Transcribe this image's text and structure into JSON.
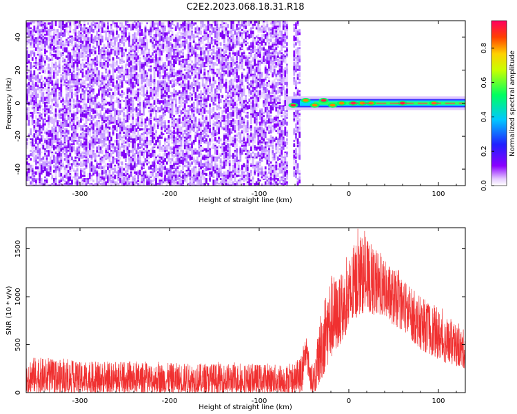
{
  "chart_data": [
    {
      "type": "heatmap",
      "title": "C2E2.2023.068.18.31.R18",
      "xlabel": "Height of straight line (km)",
      "ylabel": "Frequency (Hz)",
      "xlim": [
        -360,
        130
      ],
      "ylim": [
        -50,
        50
      ],
      "xticks": [
        "-300",
        "-200",
        "-100",
        "0",
        "100"
      ],
      "yticks": [
        "-40",
        "-20",
        "0",
        "20",
        "40"
      ],
      "grid": false,
      "colorbar": {
        "label": "Normalized spectral amplitude",
        "range": [
          0,
          0.96
        ],
        "ticks": [
          "0.0",
          "0.2",
          "0.4",
          "0.6",
          "0.8"
        ],
        "colormap": [
          "#ffffff",
          "#e0c0ff",
          "#8a00ff",
          "#2020ff",
          "#00c8ff",
          "#00ff60",
          "#c8ff00",
          "#ffd000",
          "#ff4000",
          "#ff0060"
        ]
      },
      "features": {
        "noise_region_x": [
          -360,
          -55
        ],
        "noise_gap_x": [
          -68,
          -63
        ],
        "signal_line_start_x": -70,
        "signal_line_freq": 0
      }
    },
    {
      "type": "line",
      "xlabel": "Height of straight line (km)",
      "ylabel": "SNR (10 * v/v)",
      "xlim": [
        -360,
        130
      ],
      "ylim": [
        0,
        1720
      ],
      "xticks": [
        "-300",
        "-200",
        "-100",
        "0",
        "100"
      ],
      "yticks": [
        "0",
        "500",
        "1000",
        "1500"
      ],
      "grid": false,
      "series": [
        {
          "color": "#f03030",
          "envelope": {
            "x": [
              -360,
              -300,
              -200,
              -100,
              -60,
              -52,
              -48,
              -42,
              -38,
              -32,
              -20,
              -10,
              0,
              10,
              20,
              30,
              40,
              50,
              60,
              70,
              80,
              90,
              100,
              110,
              120,
              130
            ],
            "lower": [
              0,
              0,
              0,
              0,
              0,
              0,
              300,
              0,
              0,
              100,
              350,
              500,
              650,
              800,
              850,
              800,
              800,
              700,
              650,
              550,
              450,
              400,
              350,
              300,
              280,
              250
            ],
            "upper": [
              380,
              320,
              310,
              300,
              290,
              420,
              620,
              300,
              300,
              850,
              1250,
              1200,
              1400,
              1650,
              1600,
              1500,
              1380,
              1300,
              1200,
              1100,
              1000,
              950,
              880,
              780,
              700,
              650
            ]
          }
        }
      ]
    }
  ]
}
